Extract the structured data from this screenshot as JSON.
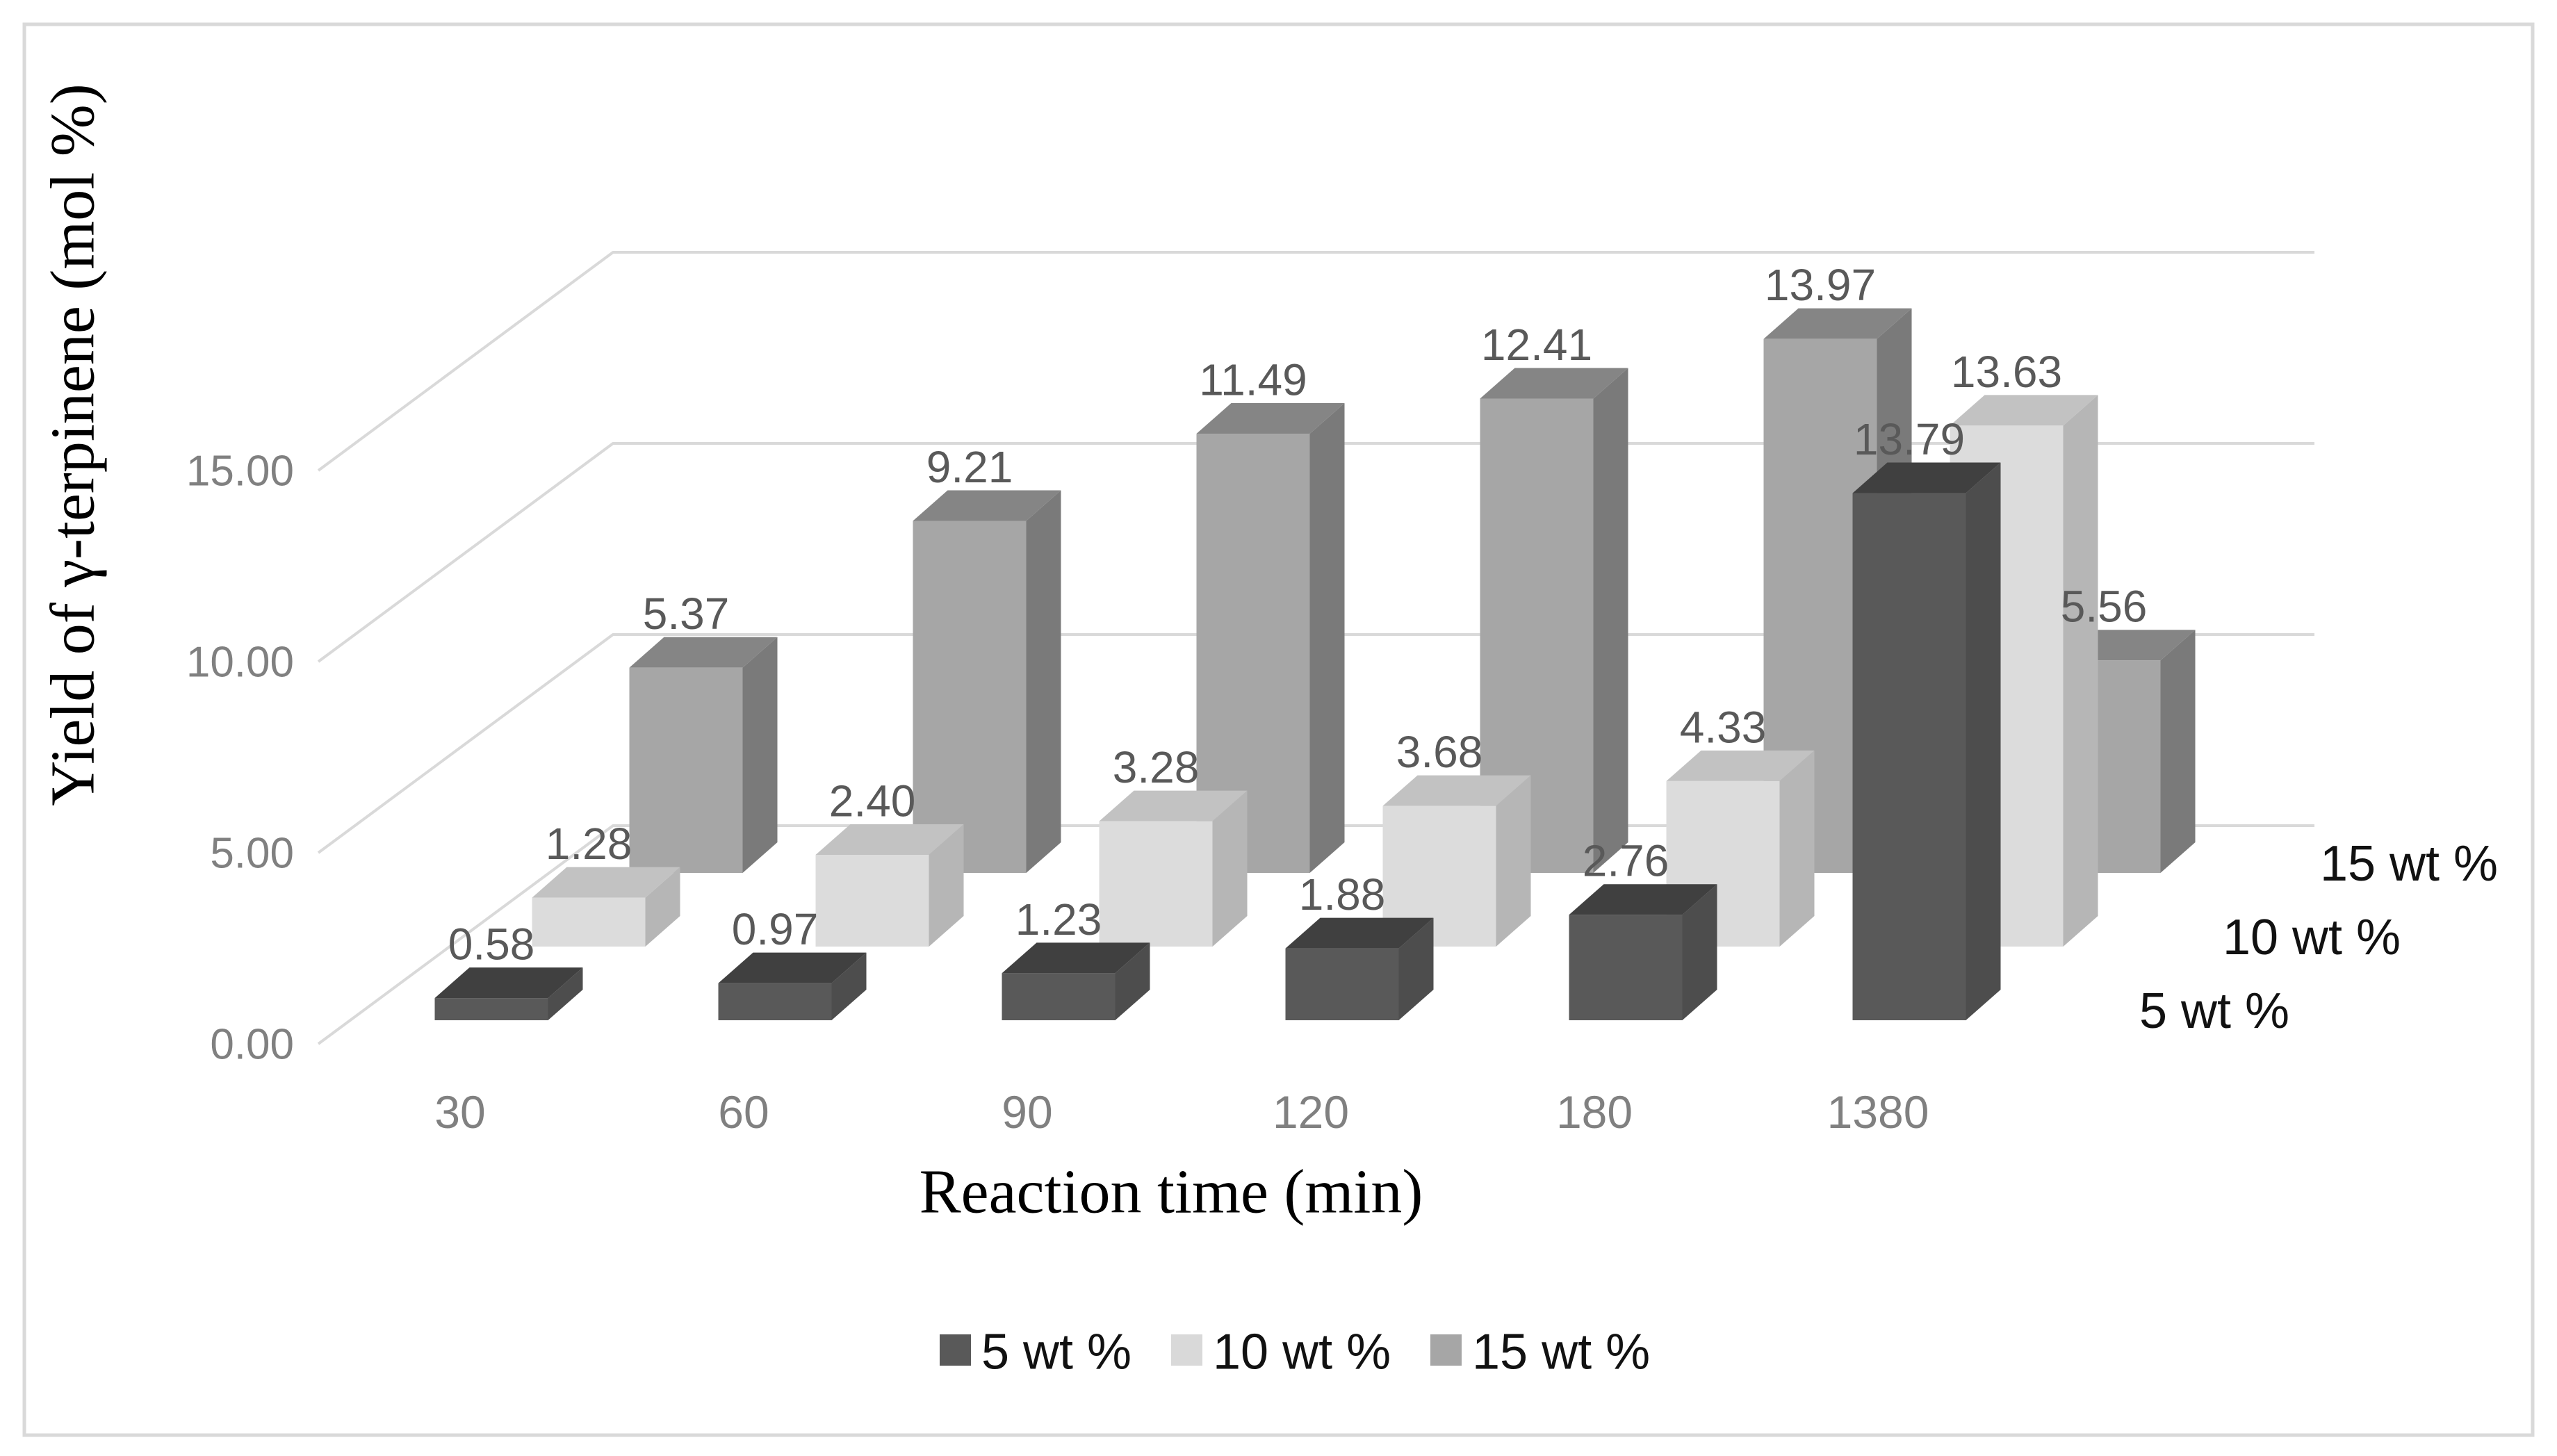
{
  "figure": {
    "background_color": "#ffffff",
    "border_color": "#d9d9d9"
  },
  "chart_data": {
    "type": "bar",
    "projection": "3d",
    "title": "",
    "xlabel": "Reaction time (min)",
    "ylabel": "Yield of γ-terpinene (mol %)",
    "categories": [
      "30",
      "60",
      "90",
      "120",
      "180",
      "1380"
    ],
    "series": [
      {
        "name": "5 wt %",
        "values": [
          0.58,
          0.97,
          1.23,
          1.88,
          2.76,
          13.79
        ],
        "color": "#595959",
        "face_top": "#404040",
        "face_side": "#4d4d4d"
      },
      {
        "name": "10 wt %",
        "values": [
          1.28,
          2.4,
          3.28,
          3.68,
          4.33,
          13.63
        ],
        "color": "#dcdcdc",
        "face_top": "#c2c2c2",
        "face_side": "#b6b6b6"
      },
      {
        "name": "15 wt %",
        "values": [
          5.37,
          9.21,
          11.49,
          12.41,
          13.97,
          5.56
        ],
        "color": "#a6a6a6",
        "face_top": "#858585",
        "face_side": "#7a7a7a"
      }
    ],
    "y_ticks": [
      "0.00",
      "5.00",
      "10.00",
      "15.00"
    ],
    "ylim": [
      0,
      15
    ],
    "y_tick_step": 5,
    "depth_axis_labels": [
      "5 wt %",
      "10 wt %",
      "15 wt %"
    ],
    "legend": {
      "position": "bottom",
      "items": [
        {
          "label": "5 wt %",
          "swatch_color": "#595959"
        },
        {
          "label": "10 wt %",
          "swatch_color": "#d9d9d9"
        },
        {
          "label": "15 wt %",
          "swatch_color": "#a6a6a6"
        }
      ]
    },
    "grid": true,
    "grid_color": "#d9d9d9",
    "axis_label_color": "#808080",
    "data_label_color": "#595959",
    "axis_title_color": "#000000",
    "depth_label_color": "#111111",
    "data_labels_visible": true,
    "data_label_format": "0.00"
  }
}
